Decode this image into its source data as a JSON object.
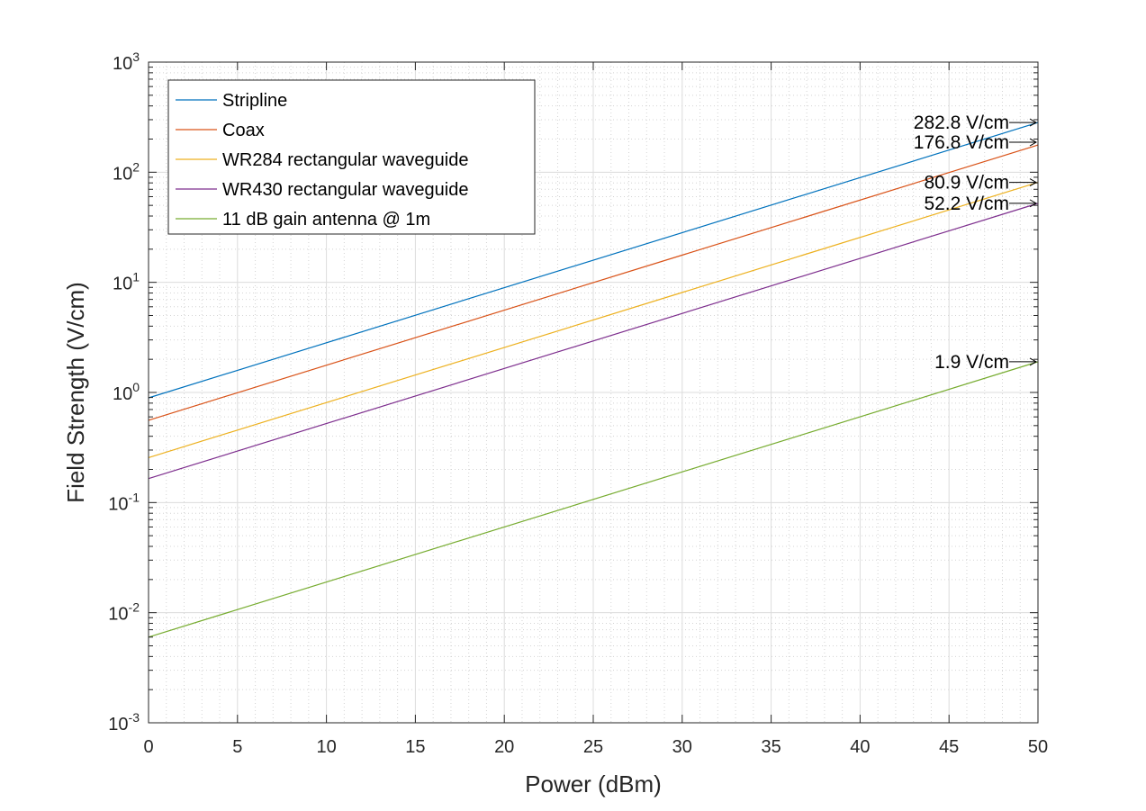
{
  "chart_data": {
    "type": "line",
    "xlabel": "Power (dBm)",
    "ylabel": "Field Strength (V/cm)",
    "xlim": [
      0,
      50
    ],
    "ylim": [
      0.001,
      1000
    ],
    "yscale": "log",
    "grid": true,
    "minor_grid": true,
    "legend_position": "top-left",
    "x_ticks": [
      "0",
      "5",
      "10",
      "15",
      "20",
      "25",
      "30",
      "35",
      "40",
      "45",
      "50"
    ],
    "y_ticks": [
      {
        "base": "10",
        "exp": "-3"
      },
      {
        "base": "10",
        "exp": "-2"
      },
      {
        "base": "10",
        "exp": "-1"
      },
      {
        "base": "10",
        "exp": "0"
      },
      {
        "base": "10",
        "exp": "1"
      },
      {
        "base": "10",
        "exp": "2"
      },
      {
        "base": "10",
        "exp": "3"
      }
    ],
    "x": [
      0,
      50
    ],
    "series": [
      {
        "name": "Stripline",
        "color": "#0072BD",
        "values": [
          0.894,
          282.8
        ]
      },
      {
        "name": "Coax",
        "color": "#D95319",
        "values": [
          0.559,
          176.8
        ]
      },
      {
        "name": "WR284 rectangular waveguide",
        "color": "#EDB120",
        "values": [
          0.256,
          80.9
        ]
      },
      {
        "name": "WR430 rectangular waveguide",
        "color": "#7E2F8E",
        "values": [
          0.165,
          52.2
        ]
      },
      {
        "name": "11 dB gain antenna @ 1m",
        "color": "#77AC30",
        "values": [
          0.006,
          1.9
        ]
      }
    ],
    "annotations": [
      {
        "text": "282.8 V/cm",
        "x": 50,
        "y": 282.8
      },
      {
        "text": "176.8 V/cm",
        "x": 50,
        "y": 176.8
      },
      {
        "text": "80.9 V/cm",
        "x": 50,
        "y": 80.9
      },
      {
        "text": "52.2 V/cm",
        "x": 50,
        "y": 52.2
      },
      {
        "text": "1.9 V/cm",
        "x": 50,
        "y": 1.9
      }
    ]
  }
}
